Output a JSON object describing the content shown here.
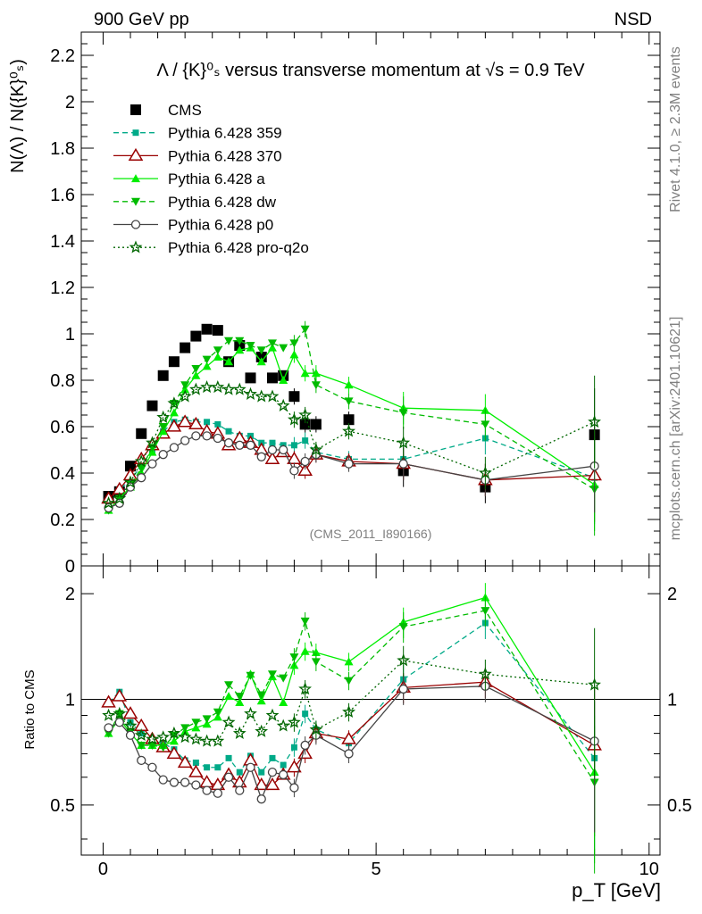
{
  "header": {
    "left": "900 GeV pp",
    "right": "NSD",
    "side_top": "Rivet 4.1.0, ≥ 2.3M events",
    "side_bottom": "mcplots.cern.ch [arXiv:2401.10621]",
    "analysis": "(CMS_2011_I890166)"
  },
  "chart_data": [
    {
      "type": "scatter",
      "panel": "main",
      "title": "Λ / {K}⁰ₛ versus transverse momentum at √s = 0.9 TeV",
      "ylabel": "N(Λ) / N({K}⁰ₛ)",
      "xlabel": "p_T [GeV]",
      "xlim": [
        -0.4,
        10.2
      ],
      "ylim": [
        0,
        2.3
      ],
      "yticks": [
        0,
        0.2,
        0.4,
        0.6,
        0.8,
        1,
        1.2,
        1.4,
        1.6,
        1.8,
        2,
        2.2
      ],
      "ytick_labels": [
        "0",
        "0.2",
        "0.4",
        "0.6",
        "0.8",
        "1",
        "1.2",
        "1.4",
        "1.6",
        "1.8",
        "2",
        "2.2"
      ],
      "xticks": [
        0,
        5,
        10
      ],
      "xtick_labels": [
        "0",
        "5",
        "10"
      ],
      "legend_position": "top-left",
      "series": [
        {
          "name": "CMS",
          "color": "#000000",
          "marker": "square",
          "line": "none",
          "x": [
            0.1,
            0.3,
            0.5,
            0.7,
            0.9,
            1.1,
            1.3,
            1.5,
            1.7,
            1.9,
            2.1,
            2.3,
            2.5,
            2.7,
            2.9,
            3.1,
            3.3,
            3.5,
            3.7,
            3.9,
            4.5,
            5.5,
            7.0,
            9.0
          ],
          "y": [
            0.3,
            0.32,
            0.43,
            0.57,
            0.69,
            0.82,
            0.88,
            0.94,
            0.99,
            1.02,
            1.015,
            0.88,
            0.95,
            0.81,
            0.9,
            0.81,
            0.82,
            0.73,
            0.61,
            0.61,
            0.63,
            0.41,
            0.34,
            0.565
          ]
        },
        {
          "name": "Pythia 6.428 359",
          "color": "#00aa88",
          "marker": "small-square",
          "line": "dashed",
          "x": [
            0.1,
            0.3,
            0.5,
            0.7,
            0.9,
            1.1,
            1.3,
            1.5,
            1.7,
            1.9,
            2.1,
            2.3,
            2.5,
            2.7,
            2.9,
            3.1,
            3.3,
            3.5,
            3.7,
            3.9,
            4.5,
            5.5,
            7.0,
            9.0
          ],
          "y": [
            0.28,
            0.33,
            0.37,
            0.43,
            0.5,
            0.58,
            0.62,
            0.63,
            0.62,
            0.62,
            0.61,
            0.58,
            0.56,
            0.56,
            0.53,
            0.53,
            0.52,
            0.52,
            0.54,
            0.49,
            0.46,
            0.46,
            0.55,
            0.38
          ]
        },
        {
          "name": "Pythia 6.428 370",
          "color": "#990000",
          "marker": "open-triangle",
          "line": "solid",
          "x": [
            0.1,
            0.3,
            0.5,
            0.7,
            0.9,
            1.1,
            1.3,
            1.5,
            1.7,
            1.9,
            2.1,
            2.3,
            2.5,
            2.7,
            2.9,
            3.1,
            3.3,
            3.5,
            3.7,
            3.9,
            4.5,
            5.5,
            7.0,
            9.0
          ],
          "y": [
            0.29,
            0.33,
            0.39,
            0.46,
            0.52,
            0.57,
            0.6,
            0.62,
            0.61,
            0.58,
            0.57,
            0.52,
            0.55,
            0.53,
            0.5,
            0.46,
            0.49,
            0.46,
            0.41,
            0.48,
            0.45,
            0.44,
            0.37,
            0.39
          ]
        },
        {
          "name": "Pythia 6.428 a",
          "color": "#00ee00",
          "marker": "triangle",
          "line": "solid",
          "x": [
            0.1,
            0.3,
            0.5,
            0.7,
            0.9,
            1.1,
            1.3,
            1.5,
            1.7,
            1.9,
            2.1,
            2.3,
            2.5,
            2.7,
            2.9,
            3.1,
            3.3,
            3.5,
            3.7,
            3.9,
            4.5,
            5.5,
            7.0,
            9.0
          ],
          "y": [
            0.24,
            0.29,
            0.34,
            0.4,
            0.49,
            0.58,
            0.66,
            0.76,
            0.82,
            0.86,
            0.9,
            0.88,
            0.93,
            0.94,
            0.88,
            0.94,
            0.8,
            0.91,
            0.83,
            0.83,
            0.78,
            0.68,
            0.67,
            0.35
          ]
        },
        {
          "name": "Pythia 6.428 dw",
          "color": "#00bb00",
          "marker": "down-triangle",
          "line": "dashed",
          "x": [
            0.1,
            0.3,
            0.5,
            0.7,
            0.9,
            1.1,
            1.3,
            1.5,
            1.7,
            1.9,
            2.1,
            2.3,
            2.5,
            2.7,
            2.9,
            3.1,
            3.3,
            3.5,
            3.7,
            3.9,
            4.5,
            5.5,
            7.0,
            9.0
          ],
          "y": [
            0.24,
            0.29,
            0.35,
            0.42,
            0.51,
            0.6,
            0.7,
            0.78,
            0.85,
            0.89,
            0.93,
            0.97,
            0.97,
            0.95,
            0.93,
            0.96,
            0.94,
            0.96,
            1.02,
            0.78,
            0.71,
            0.66,
            0.61,
            0.33
          ]
        },
        {
          "name": "Pythia 6.428 p0",
          "color": "#444444",
          "marker": "open-circle",
          "line": "solid",
          "x": [
            0.1,
            0.3,
            0.5,
            0.7,
            0.9,
            1.1,
            1.3,
            1.5,
            1.7,
            1.9,
            2.1,
            2.3,
            2.5,
            2.7,
            2.9,
            3.1,
            3.3,
            3.5,
            3.7,
            3.9,
            4.5,
            5.5,
            7.0,
            9.0
          ],
          "y": [
            0.25,
            0.27,
            0.34,
            0.38,
            0.44,
            0.48,
            0.51,
            0.54,
            0.56,
            0.56,
            0.55,
            0.53,
            0.52,
            0.52,
            0.47,
            0.5,
            0.5,
            0.41,
            0.45,
            0.48,
            0.44,
            0.44,
            0.37,
            0.43
          ]
        },
        {
          "name": "Pythia 6.428 pro-q2o",
          "color": "#006600",
          "marker": "star",
          "line": "dotted",
          "x": [
            0.1,
            0.3,
            0.5,
            0.7,
            0.9,
            1.1,
            1.3,
            1.5,
            1.7,
            1.9,
            2.1,
            2.3,
            2.5,
            2.7,
            2.9,
            3.1,
            3.3,
            3.5,
            3.7,
            3.9,
            4.5,
            5.5,
            7.0,
            9.0
          ],
          "y": [
            0.27,
            0.29,
            0.36,
            0.45,
            0.53,
            0.64,
            0.7,
            0.73,
            0.76,
            0.77,
            0.77,
            0.76,
            0.76,
            0.74,
            0.73,
            0.73,
            0.69,
            0.63,
            0.65,
            0.5,
            0.58,
            0.53,
            0.4,
            0.62
          ]
        }
      ]
    },
    {
      "type": "line",
      "panel": "ratio",
      "ylabel": "Ratio to CMS",
      "xlabel": "p_T [GeV]",
      "yscale": "log",
      "xlim": [
        -0.4,
        10.2
      ],
      "ylim": [
        0.36,
        2.4
      ],
      "yticks": [
        0.5,
        1,
        2
      ],
      "ytick_labels": [
        "0.5",
        "1",
        "2"
      ],
      "reference_line": 1,
      "series": [
        {
          "name": "Pythia 6.428 359",
          "x": [
            0.1,
            0.3,
            0.5,
            0.7,
            0.9,
            1.1,
            1.3,
            1.5,
            1.7,
            1.9,
            2.1,
            2.3,
            2.5,
            2.7,
            2.9,
            3.1,
            3.3,
            3.5,
            3.7,
            3.9,
            4.5,
            5.5,
            7.0,
            9.0
          ],
          "y": [
            0.98,
            1.05,
            0.86,
            0.8,
            0.76,
            0.75,
            0.72,
            0.67,
            0.66,
            0.64,
            0.64,
            0.68,
            0.62,
            0.69,
            0.62,
            0.68,
            0.65,
            0.73,
            0.91,
            0.82,
            0.75,
            1.14,
            1.65,
            0.68
          ]
        },
        {
          "name": "Pythia 6.428 370",
          "x": [
            0.1,
            0.3,
            0.5,
            0.7,
            0.9,
            1.1,
            1.3,
            1.5,
            1.7,
            1.9,
            2.1,
            2.3,
            2.5,
            2.7,
            2.9,
            3.1,
            3.3,
            3.5,
            3.7,
            3.9,
            4.5,
            5.5,
            7.0,
            9.0
          ],
          "y": [
            0.98,
            1.02,
            0.91,
            0.84,
            0.77,
            0.73,
            0.7,
            0.66,
            0.62,
            0.58,
            0.57,
            0.61,
            0.58,
            0.67,
            0.57,
            0.57,
            0.61,
            0.64,
            0.7,
            0.8,
            0.77,
            1.08,
            1.12,
            0.74
          ]
        },
        {
          "name": "Pythia 6.428 a",
          "x": [
            0.1,
            0.3,
            0.5,
            0.7,
            0.9,
            1.1,
            1.3,
            1.5,
            1.7,
            1.9,
            2.1,
            2.3,
            2.5,
            2.7,
            2.9,
            3.1,
            3.3,
            3.5,
            3.7,
            3.9,
            4.5,
            5.5,
            7.0,
            9.0
          ],
          "y": [
            0.8,
            0.88,
            0.8,
            0.74,
            0.74,
            0.74,
            0.76,
            0.81,
            0.83,
            0.85,
            0.89,
            1.02,
            0.98,
            1.18,
            0.99,
            1.16,
            0.98,
            1.25,
            1.37,
            1.36,
            1.28,
            1.66,
            1.95,
            0.62
          ]
        },
        {
          "name": "Pythia 6.428 dw",
          "x": [
            0.1,
            0.3,
            0.5,
            0.7,
            0.9,
            1.1,
            1.3,
            1.5,
            1.7,
            1.9,
            2.1,
            2.3,
            2.5,
            2.7,
            2.9,
            3.1,
            3.3,
            3.5,
            3.7,
            3.9,
            4.5,
            5.5,
            7.0,
            9.0
          ],
          "y": [
            0.8,
            0.91,
            0.81,
            0.74,
            0.74,
            0.73,
            0.79,
            0.83,
            0.86,
            0.88,
            0.92,
            1.1,
            1.02,
            1.17,
            1.03,
            1.18,
            1.15,
            1.32,
            1.67,
            1.28,
            1.13,
            1.61,
            1.79,
            0.58
          ]
        },
        {
          "name": "Pythia 6.428 p0",
          "x": [
            0.1,
            0.3,
            0.5,
            0.7,
            0.9,
            1.1,
            1.3,
            1.5,
            1.7,
            1.9,
            2.1,
            2.3,
            2.5,
            2.7,
            2.9,
            3.1,
            3.3,
            3.5,
            3.7,
            3.9,
            4.5,
            5.5,
            7.0,
            9.0
          ],
          "y": [
            0.83,
            0.86,
            0.79,
            0.67,
            0.64,
            0.59,
            0.58,
            0.58,
            0.57,
            0.55,
            0.54,
            0.6,
            0.55,
            0.64,
            0.52,
            0.62,
            0.61,
            0.56,
            0.74,
            0.79,
            0.7,
            1.07,
            1.09,
            0.76
          ]
        },
        {
          "name": "Pythia 6.428 pro-q2o",
          "x": [
            0.1,
            0.3,
            0.5,
            0.7,
            0.9,
            1.1,
            1.3,
            1.5,
            1.7,
            1.9,
            2.1,
            2.3,
            2.5,
            2.7,
            2.9,
            3.1,
            3.3,
            3.5,
            3.7,
            3.9,
            4.5,
            5.5,
            7.0,
            9.0
          ],
          "y": [
            0.9,
            0.91,
            0.84,
            0.79,
            0.77,
            0.78,
            0.8,
            0.78,
            0.77,
            0.76,
            0.76,
            0.86,
            0.8,
            0.91,
            0.81,
            0.9,
            0.84,
            0.86,
            1.07,
            0.82,
            0.92,
            1.29,
            1.18,
            1.1
          ]
        }
      ]
    }
  ]
}
